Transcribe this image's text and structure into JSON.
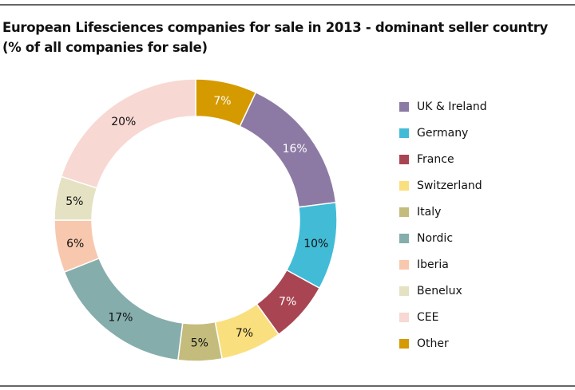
{
  "chart_data": {
    "type": "pie",
    "title": "European Lifesciences companies for sale in 2013 - dominant seller country",
    "subtitle": "(% of all companies for sale)",
    "legend_position": "right",
    "slices": [
      {
        "label": "Other",
        "value": 7,
        "display": "7%",
        "color": "#d49a00",
        "text_color": "#ffffff"
      },
      {
        "label": "UK & Ireland",
        "value": 16,
        "display": "16%",
        "color": "#8c7aa4",
        "text_color": "#ffffff"
      },
      {
        "label": "Germany",
        "value": 10,
        "display": "10%",
        "color": "#42bcd6",
        "text_color": "#111111"
      },
      {
        "label": "France",
        "value": 7,
        "display": "7%",
        "color": "#a94552",
        "text_color": "#ffffff"
      },
      {
        "label": "Switzerland",
        "value": 7,
        "display": "7%",
        "color": "#fadf7e",
        "text_color": "#111111"
      },
      {
        "label": "Italy",
        "value": 5,
        "display": "5%",
        "color": "#c4bc7c",
        "text_color": "#111111"
      },
      {
        "label": "Nordic",
        "value": 17,
        "display": "17%",
        "color": "#85adac",
        "text_color": "#111111"
      },
      {
        "label": "Iberia",
        "value": 6,
        "display": "6%",
        "color": "#f8c8ae",
        "text_color": "#111111"
      },
      {
        "label": "Benelux",
        "value": 5,
        "display": "5%",
        "color": "#e4e2c3",
        "text_color": "#111111"
      },
      {
        "label": "CEE",
        "value": 20,
        "display": "20%",
        "color": "#f8d8d2",
        "text_color": "#111111"
      }
    ],
    "legend_order": [
      "UK & Ireland",
      "Germany",
      "France",
      "Switzerland",
      "Italy",
      "Nordic",
      "Iberia",
      "Benelux",
      "CEE",
      "Other"
    ]
  }
}
